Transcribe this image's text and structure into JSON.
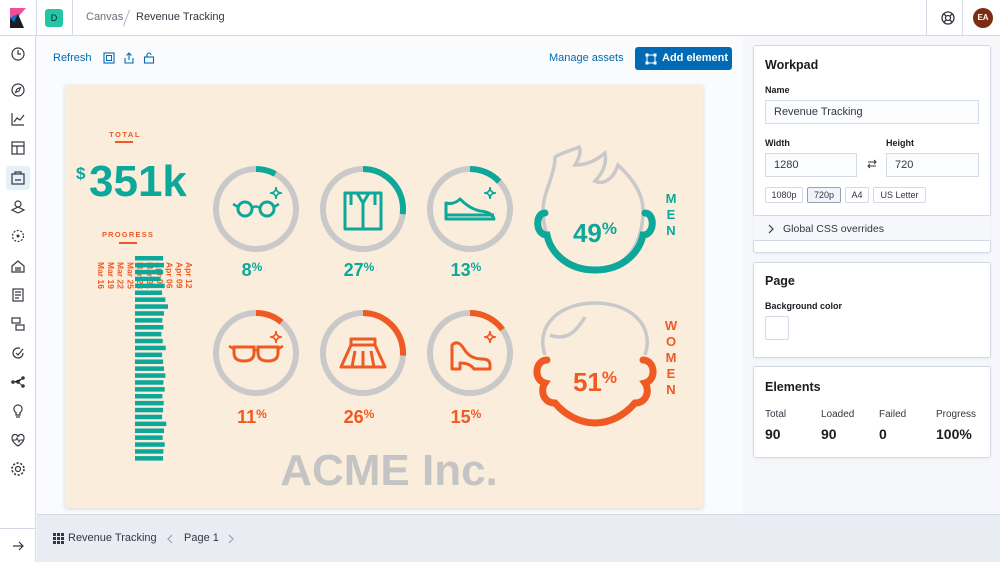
{
  "header": {
    "space_initial": "D",
    "space_color": "#21c7a5",
    "breadcrumbs": [
      "Canvas",
      "Revenue Tracking"
    ],
    "avatar_initials": "EA",
    "avatar_color": "#7d2c12"
  },
  "nav": {
    "icons": [
      "recent-icon",
      "discover-icon",
      "visualize-icon",
      "dashboard-icon",
      "canvas-icon",
      "maps-icon",
      "ml-icon",
      "infrastructure-icon",
      "logs-icon",
      "apm-icon",
      "uptime-icon",
      "graph-icon",
      "dev-tools-icon",
      "monitoring-icon",
      "management-icon"
    ],
    "active": "canvas-icon"
  },
  "toolbar": {
    "refresh_label": "Refresh",
    "manage_assets_label": "Manage assets",
    "add_element_label": "Add element",
    "accent": "#006bb4"
  },
  "workpad": {
    "background": "#fbeddc",
    "total_label": "TOTAL",
    "total_currency": "$",
    "total_value": "351k",
    "progress_label": "PROGRESS",
    "progress_dates": [
      "Mar 16",
      "Mar 19",
      "Mar 22",
      "Mar 25",
      "Mar 28",
      "Mar 31",
      "Apr 03",
      "Apr 06",
      "Apr 09",
      "Apr 12"
    ],
    "progress_fraction": [
      0.85,
      0.88,
      0.85,
      0.78,
      0.9,
      0.82,
      0.92,
      1.0,
      0.88,
      0.83,
      0.86,
      0.8,
      0.84,
      0.93,
      0.82,
      0.85,
      0.88,
      0.92,
      0.86,
      0.9,
      0.83,
      0.87,
      0.85,
      0.82,
      0.95,
      0.88,
      0.84,
      0.9,
      0.86,
      0.85
    ],
    "men_label": "MEN",
    "women_label": "WOMEN",
    "men_percent": "49",
    "women_percent": "51",
    "percent_sign": "%",
    "men_items": [
      {
        "icon": "glasses-icon",
        "value": "8",
        "fraction": 0.08
      },
      {
        "icon": "shirt-icon",
        "value": "27",
        "fraction": 0.27
      },
      {
        "icon": "sneaker-icon",
        "value": "13",
        "fraction": 0.13
      }
    ],
    "women_items": [
      {
        "icon": "sunglasses-icon",
        "value": "11",
        "fraction": 0.11
      },
      {
        "icon": "skirt-icon",
        "value": "26",
        "fraction": 0.26
      },
      {
        "icon": "heel-icon",
        "value": "15",
        "fraction": 0.15
      }
    ],
    "men_face_fraction": 0.49,
    "women_face_fraction": 0.51,
    "company": "ACME Inc.",
    "colors": {
      "teal": "#0ea89a",
      "orange": "#ef5a23",
      "gray": "#c9c9c9",
      "company": "#c4c4c4"
    }
  },
  "sidebar": {
    "workpad_title": "Workpad",
    "name_label": "Name",
    "name_value": "Revenue Tracking",
    "width_label": "Width",
    "width_value": "1280",
    "height_label": "Height",
    "height_value": "720",
    "presets": [
      "1080p",
      "720p",
      "A4",
      "US Letter"
    ],
    "selected_preset": "720p",
    "css_overrides_label": "Global CSS overrides",
    "page_title": "Page",
    "bg_color_label": "Background color",
    "elements_title": "Elements",
    "stats": [
      {
        "label": "Total",
        "value": "90"
      },
      {
        "label": "Loaded",
        "value": "90"
      },
      {
        "label": "Failed",
        "value": "0"
      },
      {
        "label": "Progress",
        "value": "100%"
      }
    ]
  },
  "footer": {
    "workpad_name": "Revenue Tracking",
    "page_label": "Page 1"
  }
}
